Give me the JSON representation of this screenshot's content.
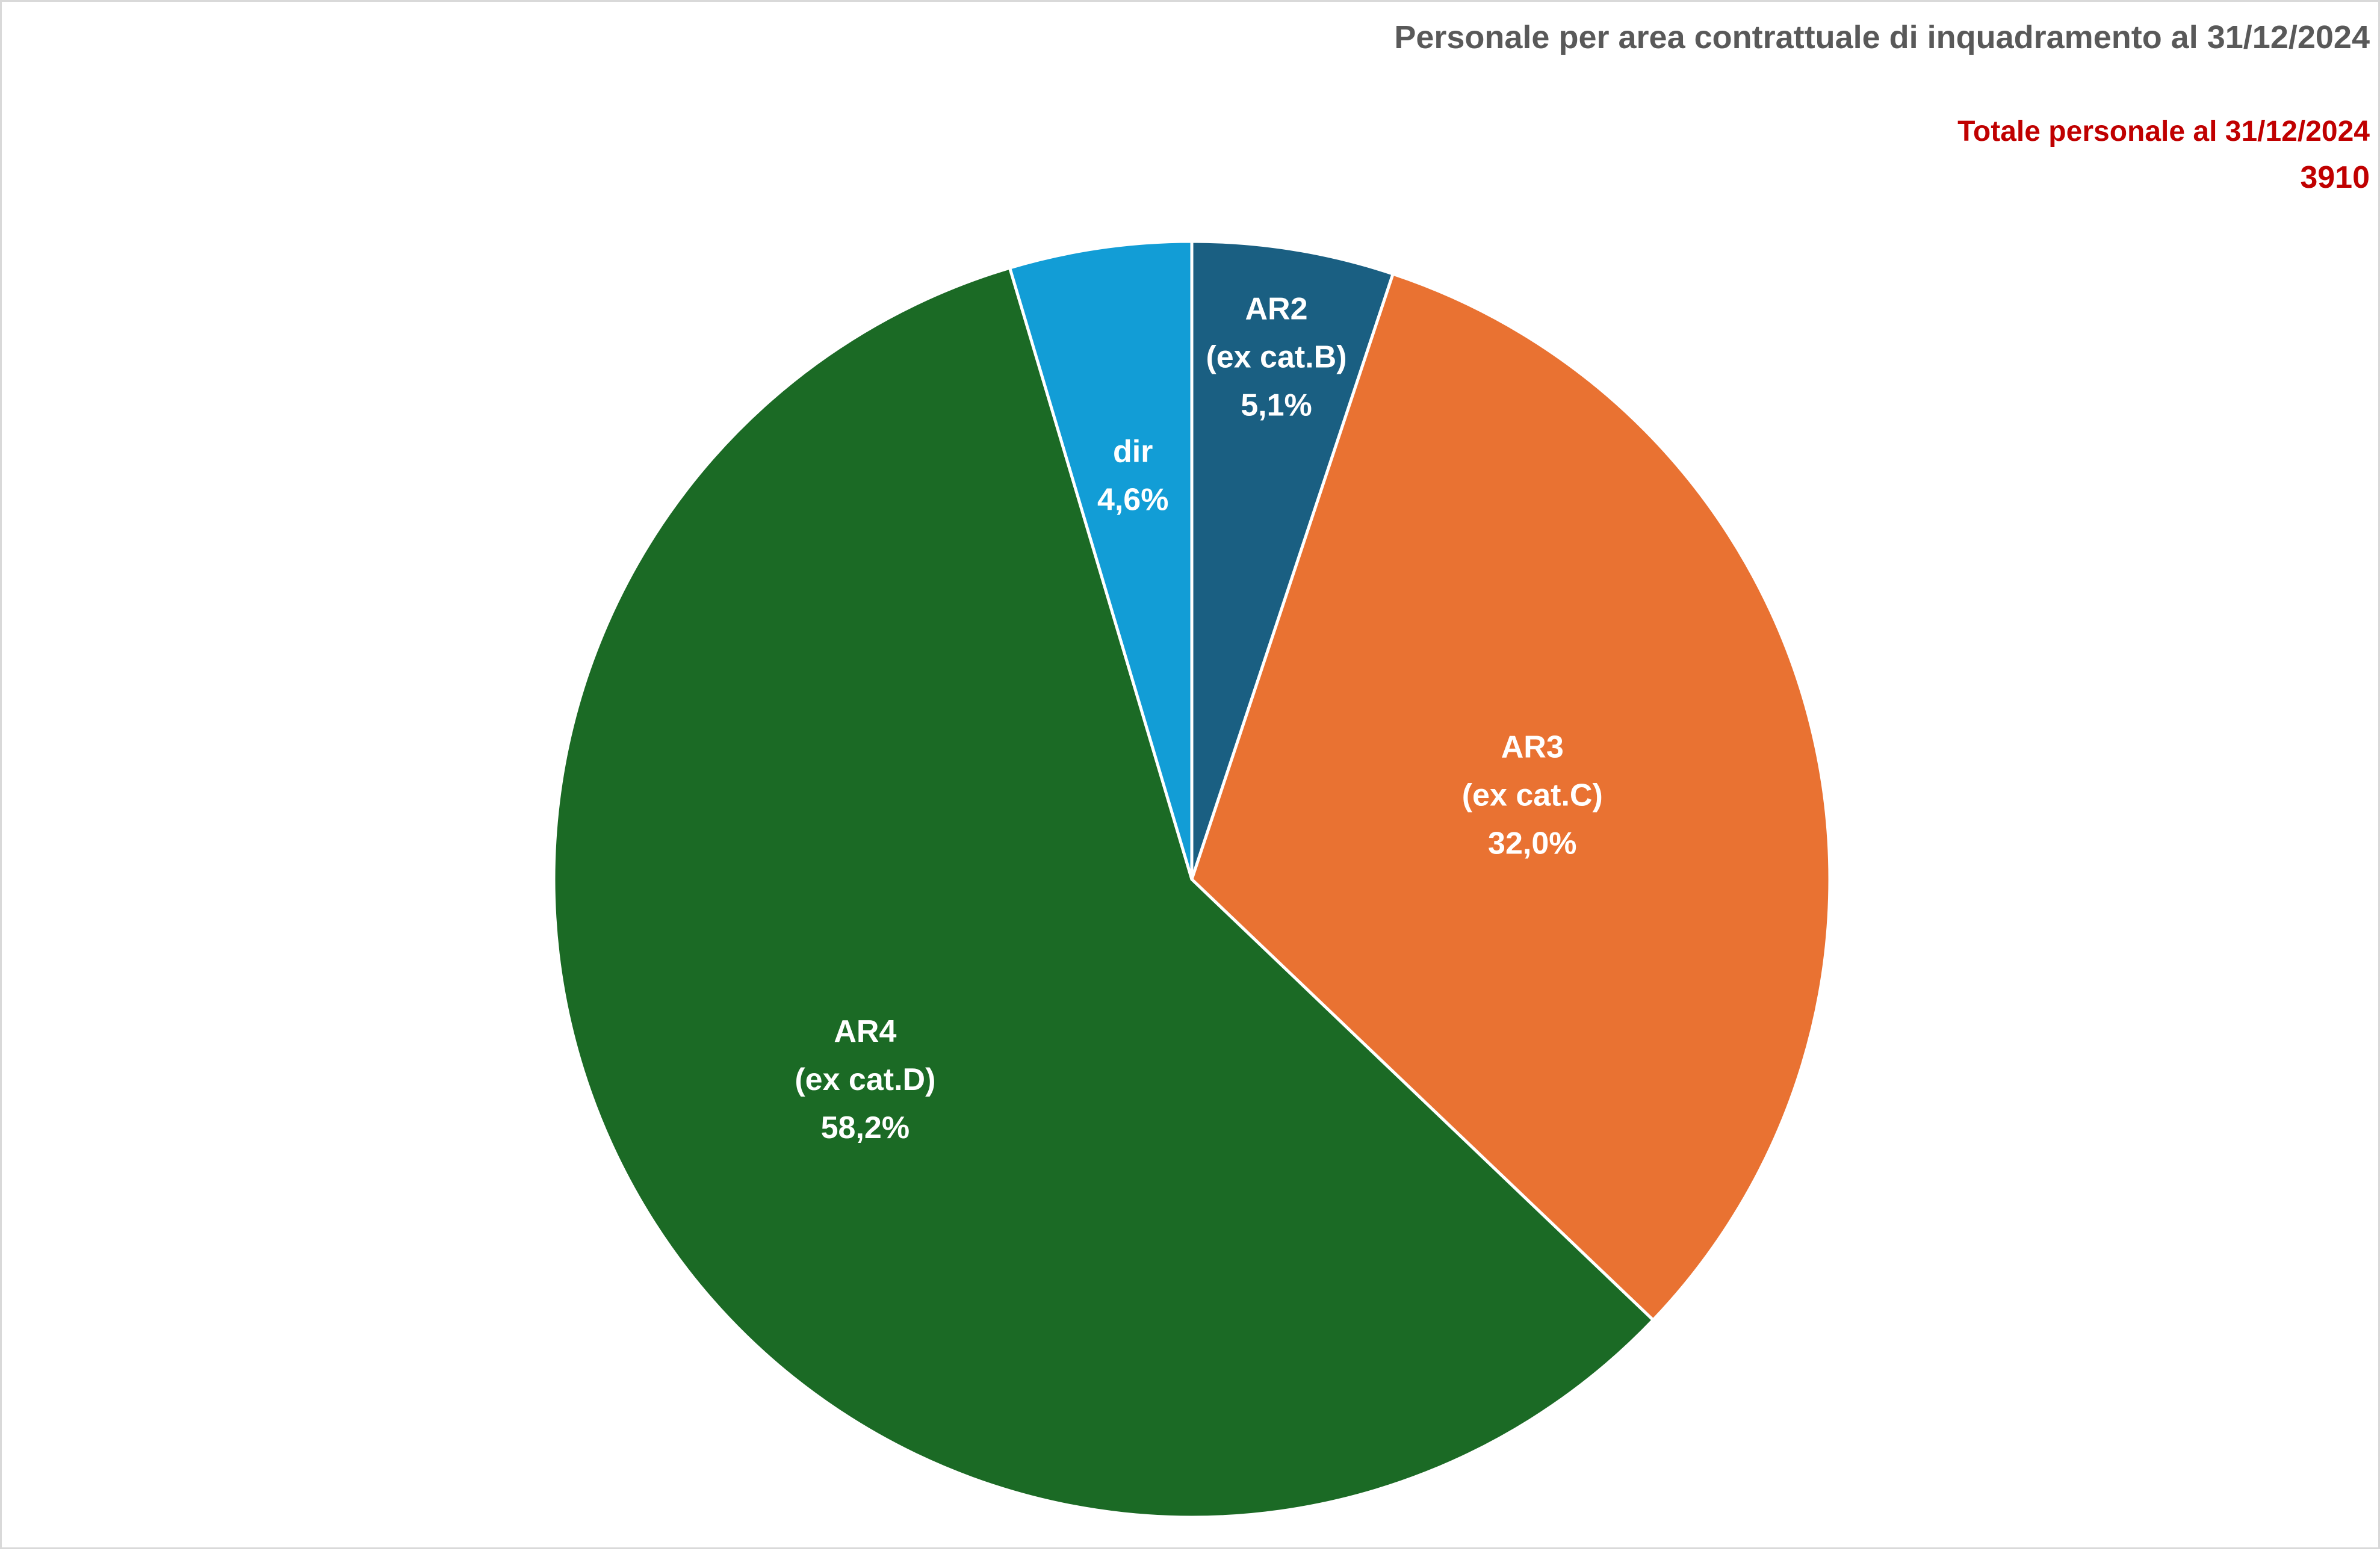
{
  "chart_data": {
    "type": "pie",
    "title": "Personale per area contrattuale di inquadramento al 31/12/2024",
    "total_label": "Totale personale al 31/12/2024",
    "total_value": "3910",
    "legend": "none",
    "slices": [
      {
        "name": "AR2",
        "sublabel": "(ex cat.B)",
        "value": 5.1,
        "value_label": "5,1%",
        "color": "#1a5f82"
      },
      {
        "name": "AR3",
        "sublabel": "(ex cat.C)",
        "value": 32.0,
        "value_label": "32,0%",
        "color": "#e97232"
      },
      {
        "name": "AR4",
        "sublabel": "(ex cat.D)",
        "value": 58.2,
        "value_label": "58,2%",
        "color": "#1b6a25"
      },
      {
        "name": "dir",
        "sublabel": "",
        "value": 4.6,
        "value_label": "4,6%",
        "color": "#129dd6"
      }
    ]
  }
}
